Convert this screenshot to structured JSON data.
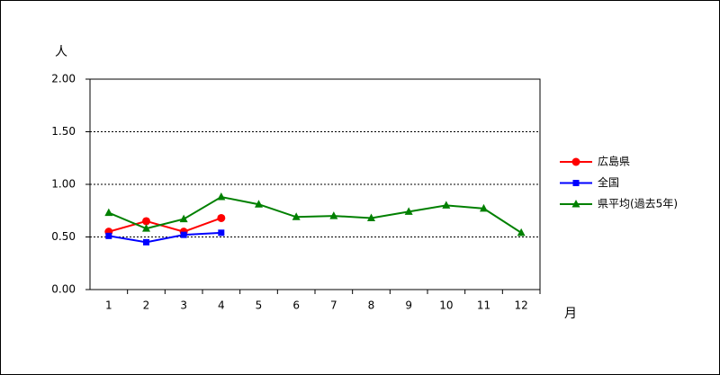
{
  "chart_data": {
    "type": "line",
    "y_label": "人",
    "x_label": "月",
    "categories": [
      "1",
      "2",
      "3",
      "4",
      "5",
      "6",
      "7",
      "8",
      "9",
      "10",
      "11",
      "12"
    ],
    "ylim": [
      0,
      2
    ],
    "yticks": [
      {
        "value": 0,
        "label": "0.00"
      },
      {
        "value": 0.5,
        "label": "0.50"
      },
      {
        "value": 1,
        "label": "1.00"
      },
      {
        "value": 1.5,
        "label": "1.50"
      },
      {
        "value": 2,
        "label": "2.00"
      }
    ],
    "grid": true,
    "legend": "right",
    "series": [
      {
        "name": "広島県",
        "color": "#ff0000",
        "marker": "circle",
        "values": [
          0.55,
          0.65,
          0.55,
          0.68,
          null,
          null,
          null,
          null,
          null,
          null,
          null,
          null
        ]
      },
      {
        "name": "全国",
        "color": "#0000ff",
        "marker": "square",
        "values": [
          0.51,
          0.45,
          0.52,
          0.54,
          null,
          null,
          null,
          null,
          null,
          null,
          null,
          null
        ]
      },
      {
        "name": "県平均(過去5年)",
        "color": "#008000",
        "marker": "triangle",
        "values": [
          0.73,
          0.58,
          0.67,
          0.88,
          0.81,
          0.69,
          0.7,
          0.68,
          0.74,
          0.8,
          0.77,
          0.54
        ]
      }
    ]
  }
}
